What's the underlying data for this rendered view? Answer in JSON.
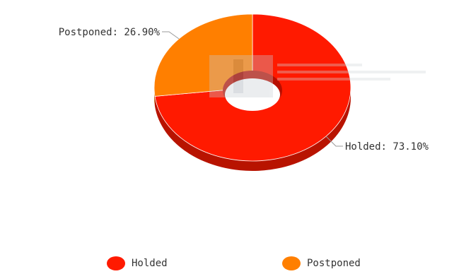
{
  "chart_data": {
    "type": "pie",
    "variant": "donut-3d",
    "slices": [
      {
        "name": "Holded",
        "value": 73.1,
        "label": "Holded: 73.10%",
        "color": "#ff1a00"
      },
      {
        "name": "Postponed",
        "value": 26.9,
        "label": "Postponed: 26.90%",
        "color": "#ff7f00"
      }
    ],
    "legend": {
      "placement": "bottom-center",
      "items": [
        "Holded",
        "Postponed"
      ]
    }
  }
}
